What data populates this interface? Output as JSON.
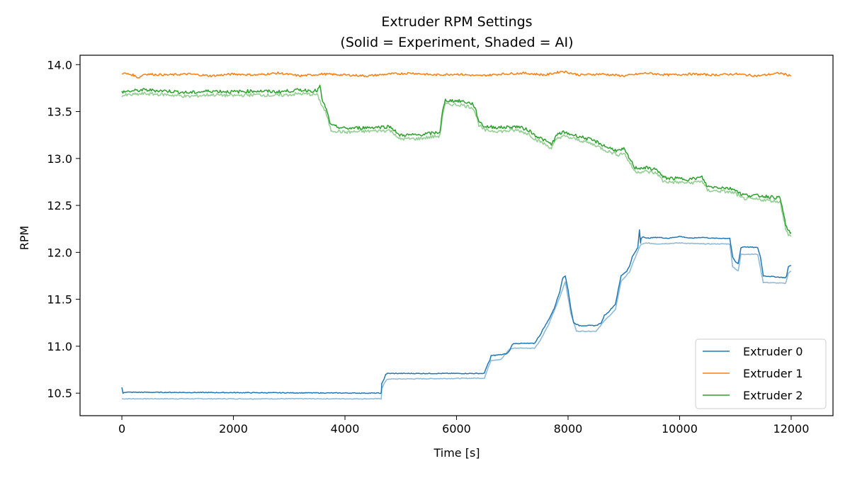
{
  "chart_data": {
    "type": "line",
    "title_lines": [
      "Extruder RPM Settings",
      "(Solid = Experiment, Shaded = AI)"
    ],
    "xlabel": "Time [s]",
    "ylabel": "RPM",
    "xlim": [
      -750,
      12750
    ],
    "ylim": [
      10.26,
      14.1
    ],
    "xticks": [
      0,
      2000,
      4000,
      6000,
      8000,
      10000,
      12000
    ],
    "xtick_labels": [
      "0",
      "2000",
      "4000",
      "6000",
      "8000",
      "10000",
      "12000"
    ],
    "yticks": [
      10.5,
      11.0,
      11.5,
      12.0,
      12.5,
      13.0,
      13.5,
      14.0
    ],
    "ytick_labels": [
      "10.5",
      "11.0",
      "11.5",
      "12.0",
      "12.5",
      "13.0",
      "13.5",
      "14.0"
    ],
    "grid": false,
    "legend_position": "lower-right",
    "series": [
      {
        "name": "Extruder 0",
        "color": "#1f77b4",
        "experiment": {
          "x": [
            0,
            20,
            40,
            4650,
            4660,
            4700,
            4730,
            4760,
            6500,
            6520,
            6560,
            6600,
            6620,
            6800,
            6900,
            6950,
            7000,
            7050,
            7400,
            7450,
            7500,
            7550,
            7650,
            7750,
            7850,
            7900,
            7950,
            8000,
            8050,
            8100,
            8200,
            8500,
            8600,
            8650,
            8700,
            8850,
            8900,
            8950,
            9050,
            9100,
            9150,
            9200,
            9250,
            9280,
            9300,
            9310,
            9350,
            9400,
            9600,
            9800,
            10000,
            10200,
            10400,
            10600,
            10900,
            10950,
            11000,
            11050,
            11100,
            11150,
            11400,
            11450,
            11500,
            11900,
            11920,
            11950,
            12000
          ],
          "y": [
            10.56,
            10.5,
            10.51,
            10.5,
            10.6,
            10.65,
            10.7,
            10.71,
            10.71,
            10.75,
            10.81,
            10.85,
            10.9,
            10.91,
            10.92,
            10.95,
            11.02,
            11.03,
            11.03,
            11.08,
            11.12,
            11.18,
            11.28,
            11.4,
            11.58,
            11.72,
            11.75,
            11.6,
            11.4,
            11.25,
            11.22,
            11.22,
            11.25,
            11.33,
            11.35,
            11.45,
            11.6,
            11.75,
            11.8,
            11.85,
            11.95,
            12.0,
            12.05,
            12.24,
            12.1,
            12.15,
            12.17,
            12.15,
            12.16,
            12.15,
            12.17,
            12.15,
            12.16,
            12.15,
            12.15,
            11.95,
            11.9,
            11.88,
            12.05,
            12.06,
            12.05,
            11.95,
            11.75,
            11.73,
            11.75,
            11.85,
            11.86
          ]
        },
        "ai": {
          "x": [
            0,
            4650,
            4660,
            4700,
            4760,
            6500,
            6560,
            6620,
            6800,
            6950,
            7050,
            7400,
            7500,
            7650,
            7850,
            7950,
            8050,
            8150,
            8500,
            8650,
            8850,
            8950,
            9100,
            9200,
            9300,
            9400,
            9600,
            10000,
            10400,
            10900,
            10950,
            11050,
            11100,
            11400,
            11500,
            11900,
            11950,
            12000
          ],
          "y": [
            10.44,
            10.44,
            10.55,
            10.6,
            10.65,
            10.66,
            10.76,
            10.85,
            10.86,
            10.97,
            10.98,
            10.98,
            11.06,
            11.23,
            11.52,
            11.69,
            11.35,
            11.16,
            11.16,
            11.27,
            11.39,
            11.69,
            11.79,
            11.94,
            12.08,
            12.1,
            12.09,
            12.1,
            12.09,
            12.09,
            11.85,
            11.8,
            11.98,
            11.98,
            11.68,
            11.67,
            11.78,
            11.8
          ]
        }
      },
      {
        "name": "Extruder 1",
        "color": "#ff7f0e",
        "experiment": {
          "x": [
            0,
            200,
            300,
            400,
            800,
            1200,
            1600,
            2000,
            2400,
            2800,
            3200,
            3600,
            4000,
            4400,
            4800,
            5200,
            5600,
            6000,
            6400,
            6800,
            7200,
            7600,
            7900,
            8200,
            8600,
            9000,
            9400,
            9800,
            10200,
            10600,
            11000,
            11400,
            11800,
            12000
          ],
          "y": [
            13.91,
            13.89,
            13.86,
            13.9,
            13.89,
            13.9,
            13.88,
            13.9,
            13.89,
            13.91,
            13.88,
            13.9,
            13.89,
            13.88,
            13.9,
            13.91,
            13.89,
            13.9,
            13.88,
            13.9,
            13.91,
            13.89,
            13.93,
            13.89,
            13.9,
            13.88,
            13.91,
            13.89,
            13.9,
            13.89,
            13.9,
            13.88,
            13.91,
            13.88
          ]
        }
      },
      {
        "name": "Extruder 2",
        "color": "#2ca02c",
        "experiment": {
          "x": [
            0,
            400,
            800,
            1200,
            1600,
            2000,
            2400,
            2800,
            3200,
            3500,
            3550,
            3600,
            3650,
            3700,
            3750,
            4000,
            4400,
            4800,
            4900,
            4950,
            5000,
            5300,
            5700,
            5750,
            5800,
            6100,
            6300,
            6350,
            6400,
            6500,
            6800,
            7100,
            7300,
            7400,
            7500,
            7700,
            7800,
            7900,
            8300,
            8500,
            8700,
            8900,
            9000,
            9200,
            9400,
            9600,
            9700,
            9800,
            10200,
            10400,
            10500,
            10800,
            11000,
            11100,
            11200,
            11500,
            11800,
            11850,
            11900,
            11950,
            12000
          ],
          "y": [
            13.71,
            13.73,
            13.72,
            13.7,
            13.72,
            13.71,
            13.72,
            13.71,
            13.73,
            13.72,
            13.77,
            13.6,
            13.55,
            13.45,
            13.35,
            13.32,
            13.33,
            13.34,
            13.3,
            13.25,
            13.25,
            13.25,
            13.28,
            13.5,
            13.62,
            13.61,
            13.58,
            13.5,
            13.4,
            13.34,
            13.33,
            13.34,
            13.3,
            13.25,
            13.22,
            13.15,
            13.25,
            13.28,
            13.22,
            13.18,
            13.12,
            13.08,
            13.1,
            12.9,
            12.9,
            12.88,
            12.8,
            12.79,
            12.78,
            12.8,
            12.7,
            12.69,
            12.67,
            12.62,
            12.61,
            12.6,
            12.58,
            12.45,
            12.3,
            12.22,
            12.21
          ]
        },
        "ai": {
          "x": [
            0,
            400,
            800,
            1200,
            1600,
            2000,
            2400,
            2800,
            3200,
            3500,
            3600,
            3650,
            3700,
            3750,
            4000,
            4400,
            4800,
            4900,
            4950,
            5000,
            5300,
            5700,
            5750,
            5800,
            6100,
            6300,
            6350,
            6400,
            6500,
            6800,
            7100,
            7300,
            7400,
            7500,
            7700,
            7800,
            7900,
            8300,
            8500,
            8700,
            8900,
            9000,
            9200,
            9400,
            9600,
            9700,
            9800,
            10200,
            10400,
            10500,
            10800,
            11000,
            11100,
            11200,
            11500,
            11800,
            11850,
            11900,
            11950,
            12000
          ],
          "y": [
            13.67,
            13.69,
            13.68,
            13.66,
            13.68,
            13.67,
            13.68,
            13.67,
            13.69,
            13.68,
            13.55,
            13.5,
            13.4,
            13.3,
            13.28,
            13.29,
            13.3,
            13.26,
            13.21,
            13.21,
            13.21,
            13.24,
            13.46,
            13.58,
            13.57,
            13.54,
            13.46,
            13.36,
            13.3,
            13.29,
            13.3,
            13.26,
            13.21,
            13.18,
            13.11,
            13.21,
            13.24,
            13.18,
            13.14,
            13.08,
            13.04,
            13.06,
            12.86,
            12.86,
            12.84,
            12.76,
            12.75,
            12.74,
            12.76,
            12.66,
            12.65,
            12.63,
            12.58,
            12.57,
            12.56,
            12.54,
            12.41,
            12.26,
            12.18,
            12.17
          ]
        }
      }
    ]
  }
}
